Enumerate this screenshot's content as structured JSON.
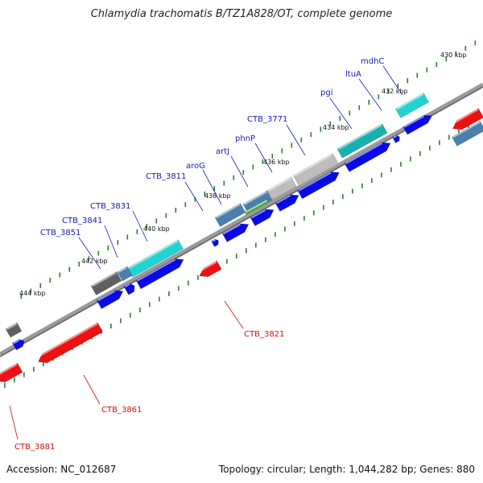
{
  "title": "Chlamydia trachomatis B/TZ1A828/OT, complete genome",
  "accession": "Accession: NC_012687",
  "summary": "Topology: circular; Length: 1,044,282 bp; Genes: 880",
  "colors": {
    "forward_gene": "#0a0ae6",
    "reverse_gene": "#ee1111",
    "blue_label": "#1a1ab8",
    "red_label": "#cc1111",
    "tick": "#2e7d2e",
    "backbone": "#7a7a7a",
    "cog_cyan": "#22d3d3",
    "cog_teal": "#19b0b0",
    "cog_lightgray": "#bdbdbd",
    "cog_darkgray": "#606060",
    "cog_steelblue": "#4a7fad",
    "cog_green": "#3db53d"
  },
  "scale": {
    "tick_labels": [
      "430 kbp",
      "432 kbp",
      "434 kbp",
      "436 kbp",
      "438 kbp",
      "440 kbp",
      "442 kbp",
      "444 kbp"
    ]
  },
  "genes": {
    "forward_labels": [
      "mdhC",
      "ltuA",
      "pgi",
      "CTB_3771",
      "phnP",
      "artJ",
      "aroG",
      "CTB_3811",
      "CTB_3831",
      "CTB_3841",
      "CTB_3851"
    ],
    "reverse_labels": [
      "CTB_3821",
      "CTB_3861",
      "CTB_3881"
    ]
  }
}
